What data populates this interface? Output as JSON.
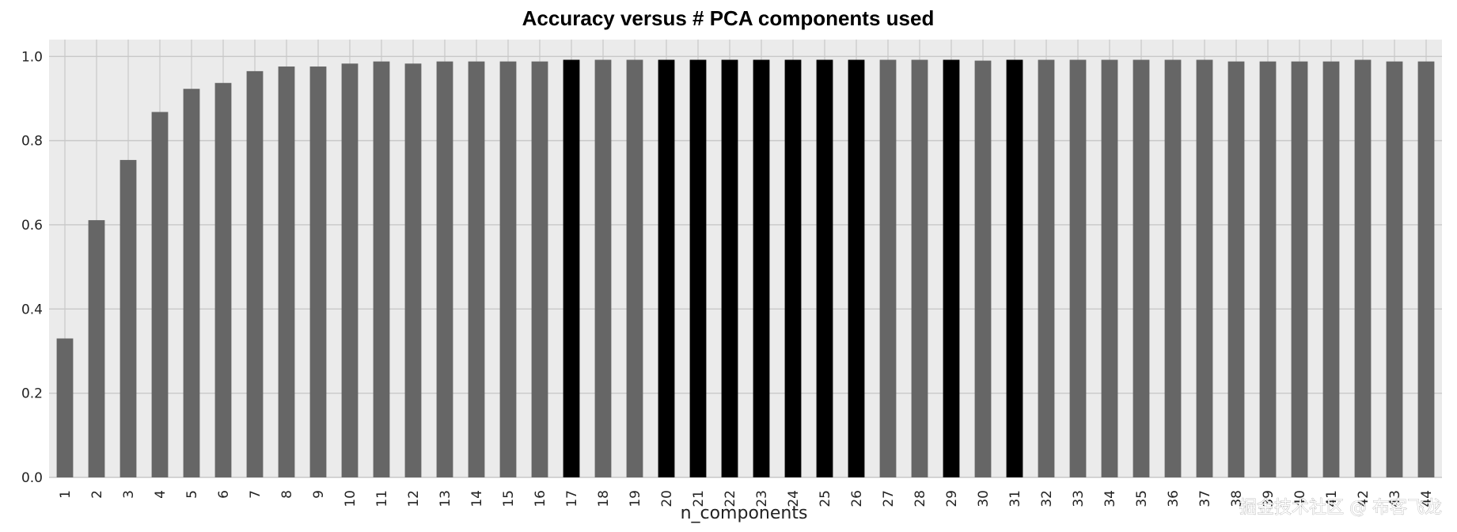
{
  "watermark": "掘金技术社区 @ 布客飞龙",
  "colors": {
    "plot_background": "#ebebeb",
    "grid": "#c8c8c8",
    "bar_default": "#666666",
    "bar_highlight": "#000000"
  },
  "chart_data": {
    "type": "bar",
    "title": "Accuracy versus # PCA  components used",
    "xlabel": "n_components",
    "ylabel": "",
    "ylim": [
      0,
      1.04
    ],
    "yticks": [
      0.0,
      0.2,
      0.4,
      0.6,
      0.8,
      1.0
    ],
    "ytick_labels": [
      "0.0",
      "0.2",
      "0.4",
      "0.6",
      "0.8",
      "1.0"
    ],
    "grid": true,
    "categories": [
      "1",
      "2",
      "3",
      "4",
      "5",
      "6",
      "7",
      "8",
      "9",
      "10",
      "11",
      "12",
      "13",
      "14",
      "15",
      "16",
      "17",
      "18",
      "19",
      "20",
      "21",
      "22",
      "23",
      "24",
      "25",
      "26",
      "27",
      "28",
      "29",
      "30",
      "31",
      "32",
      "33",
      "34",
      "35",
      "36",
      "37",
      "38",
      "39",
      "40",
      "41",
      "42",
      "43",
      "44"
    ],
    "values": [
      0.33,
      0.611,
      0.754,
      0.868,
      0.923,
      0.937,
      0.965,
      0.976,
      0.976,
      0.983,
      0.988,
      0.983,
      0.988,
      0.988,
      0.988,
      0.988,
      0.992,
      0.992,
      0.992,
      0.992,
      0.992,
      0.992,
      0.992,
      0.992,
      0.992,
      0.992,
      0.992,
      0.992,
      0.992,
      0.99,
      0.992,
      0.992,
      0.992,
      0.992,
      0.992,
      0.992,
      0.992,
      0.988,
      0.988,
      0.988,
      0.988,
      0.992,
      0.988,
      0.988
    ],
    "highlighted": [
      "17",
      "20",
      "21",
      "22",
      "23",
      "24",
      "25",
      "26",
      "29",
      "31"
    ]
  }
}
